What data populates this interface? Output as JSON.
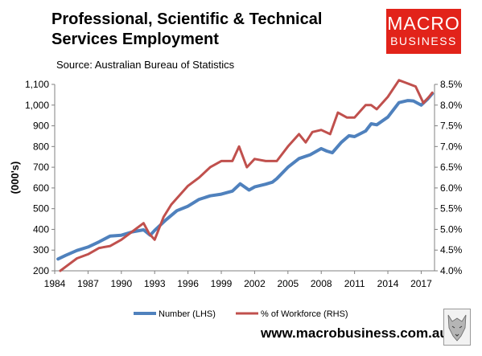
{
  "header": {
    "title_line1": "Professional, Scientific & Technical",
    "title_line2": "Services Employment",
    "source": "Source: Australian Bureau of Statistics"
  },
  "logo": {
    "line1": "MACRO",
    "line2": "BUSINESS"
  },
  "footer": {
    "url": "www.macrobusiness.com.au"
  },
  "colors": {
    "number_series": "#4f81bd",
    "workforce_series": "#c0504d",
    "logo_bg": "#e2231a"
  },
  "chart_data": {
    "type": "line",
    "title": "Professional, Scientific & Technical Services Employment",
    "ylabel": "(000's)",
    "ylim": [
      200,
      1100
    ],
    "y2lim": [
      4.0,
      8.5
    ],
    "xlim": [
      1984,
      2018.2
    ],
    "y_ticks": [
      "200",
      "300",
      "400",
      "500",
      "600",
      "700",
      "800",
      "900",
      "1,000",
      "1,100"
    ],
    "y2_ticks": [
      "4.0%",
      "4.5%",
      "5.0%",
      "5.5%",
      "6.0%",
      "6.5%",
      "7.0%",
      "7.5%",
      "8.0%",
      "8.5%"
    ],
    "x_ticks": [
      "1984",
      "1987",
      "1990",
      "1993",
      "1996",
      "1999",
      "2002",
      "2005",
      "2008",
      "2011",
      "2014",
      "2017"
    ],
    "grid": false,
    "legend_position": "bottom",
    "series": [
      {
        "name": "Number (LHS)",
        "axis": "left",
        "x": [
          1984.3,
          1985,
          1986,
          1987,
          1988,
          1989,
          1990,
          1991,
          1992,
          1992.6,
          1993,
          1994,
          1995,
          1996,
          1997,
          1998,
          1999,
          2000,
          2000.7,
          2001.5,
          2002,
          2003,
          2003.6,
          2004,
          2005,
          2006,
          2007,
          2008,
          2008.5,
          2009,
          2009.8,
          2010.5,
          2011,
          2012,
          2012.5,
          2013,
          2014,
          2015,
          2015.8,
          2016.3,
          2017,
          2017.6,
          2018
        ],
        "values": [
          257,
          275,
          298,
          315,
          340,
          368,
          372,
          388,
          398,
          372,
          395,
          445,
          490,
          512,
          545,
          562,
          570,
          585,
          620,
          590,
          605,
          618,
          628,
          645,
          700,
          742,
          760,
          790,
          778,
          770,
          820,
          852,
          848,
          875,
          910,
          905,
          942,
          1012,
          1022,
          1020,
          1000,
          1030,
          1055
        ]
      },
      {
        "name": "% of Workforce (RHS)",
        "axis": "right",
        "x": [
          1984.5,
          1985,
          1986,
          1987,
          1988,
          1989,
          1990,
          1991,
          1992,
          1992.5,
          1993,
          1993.8,
          1994.5,
          1995,
          1996,
          1997,
          1998,
          1999,
          2000,
          2000.6,
          2001.3,
          2002,
          2003,
          2004,
          2005,
          2006,
          2006.6,
          2007.2,
          2008,
          2008.8,
          2009.5,
          2010.3,
          2011,
          2012,
          2012.5,
          2013,
          2014,
          2015,
          2015.5,
          2016.5,
          2017.2,
          2017.7,
          2018
        ],
        "values": [
          4.0,
          4.1,
          4.3,
          4.4,
          4.55,
          4.6,
          4.75,
          4.95,
          5.15,
          4.9,
          4.75,
          5.3,
          5.6,
          5.75,
          6.05,
          6.25,
          6.5,
          6.65,
          6.65,
          7.0,
          6.5,
          6.7,
          6.65,
          6.65,
          7.0,
          7.3,
          7.1,
          7.35,
          7.4,
          7.3,
          7.82,
          7.7,
          7.7,
          8.0,
          8.0,
          7.9,
          8.2,
          8.6,
          8.55,
          8.45,
          8.05,
          8.2,
          8.3
        ]
      }
    ]
  }
}
